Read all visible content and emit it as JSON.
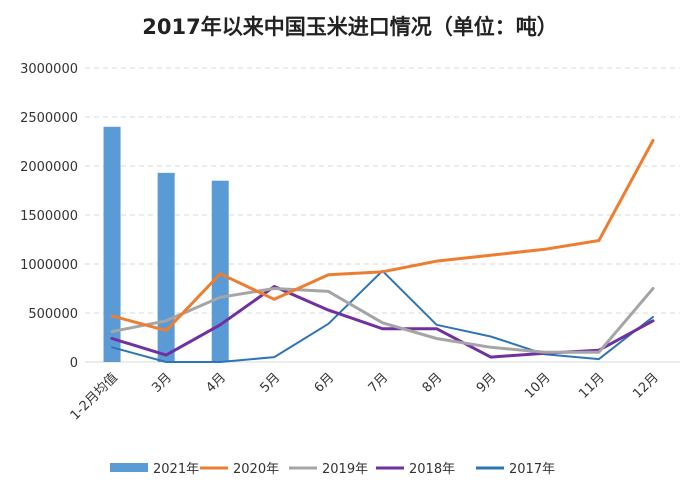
{
  "chart_data": {
    "type": "bar+line",
    "title": "2017年以来中国玉米进口情况（单位：吨）",
    "categories": [
      "1-2月均值",
      "3月",
      "4月",
      "5月",
      "6月",
      "7月",
      "8月",
      "9月",
      "10月",
      "11月",
      "12月"
    ],
    "ylim": [
      0,
      3000000
    ],
    "yticks": [
      0,
      500000,
      1000000,
      1500000,
      2000000,
      2500000,
      3000000
    ],
    "ytick_labels": [
      "0",
      "500000",
      "1000000",
      "1500000",
      "2000000",
      "2500000",
      "3000000"
    ],
    "grid": true,
    "legend_position": "bottom",
    "series": [
      {
        "name": "2021年",
        "kind": "bar",
        "color": "#5b9bd5",
        "values": [
          2400000,
          1930000,
          1850000,
          null,
          null,
          null,
          null,
          null,
          null,
          null,
          null
        ]
      },
      {
        "name": "2020年",
        "kind": "line",
        "color": "#ed7d31",
        "values": [
          470000,
          320000,
          900000,
          640000,
          890000,
          920000,
          1030000,
          1090000,
          1150000,
          1240000,
          2260000
        ]
      },
      {
        "name": "2019年",
        "kind": "line",
        "color": "#a5a5a5",
        "values": [
          310000,
          420000,
          660000,
          750000,
          720000,
          400000,
          240000,
          150000,
          100000,
          100000,
          750000
        ]
      },
      {
        "name": "2018年",
        "kind": "line",
        "color": "#7030a0",
        "values": [
          240000,
          70000,
          380000,
          770000,
          530000,
          340000,
          340000,
          50000,
          90000,
          120000,
          420000
        ]
      },
      {
        "name": "2017年",
        "kind": "line",
        "color": "#2e75b6",
        "values": [
          150000,
          0,
          0,
          50000,
          390000,
          930000,
          380000,
          260000,
          80000,
          30000,
          460000
        ]
      }
    ]
  }
}
